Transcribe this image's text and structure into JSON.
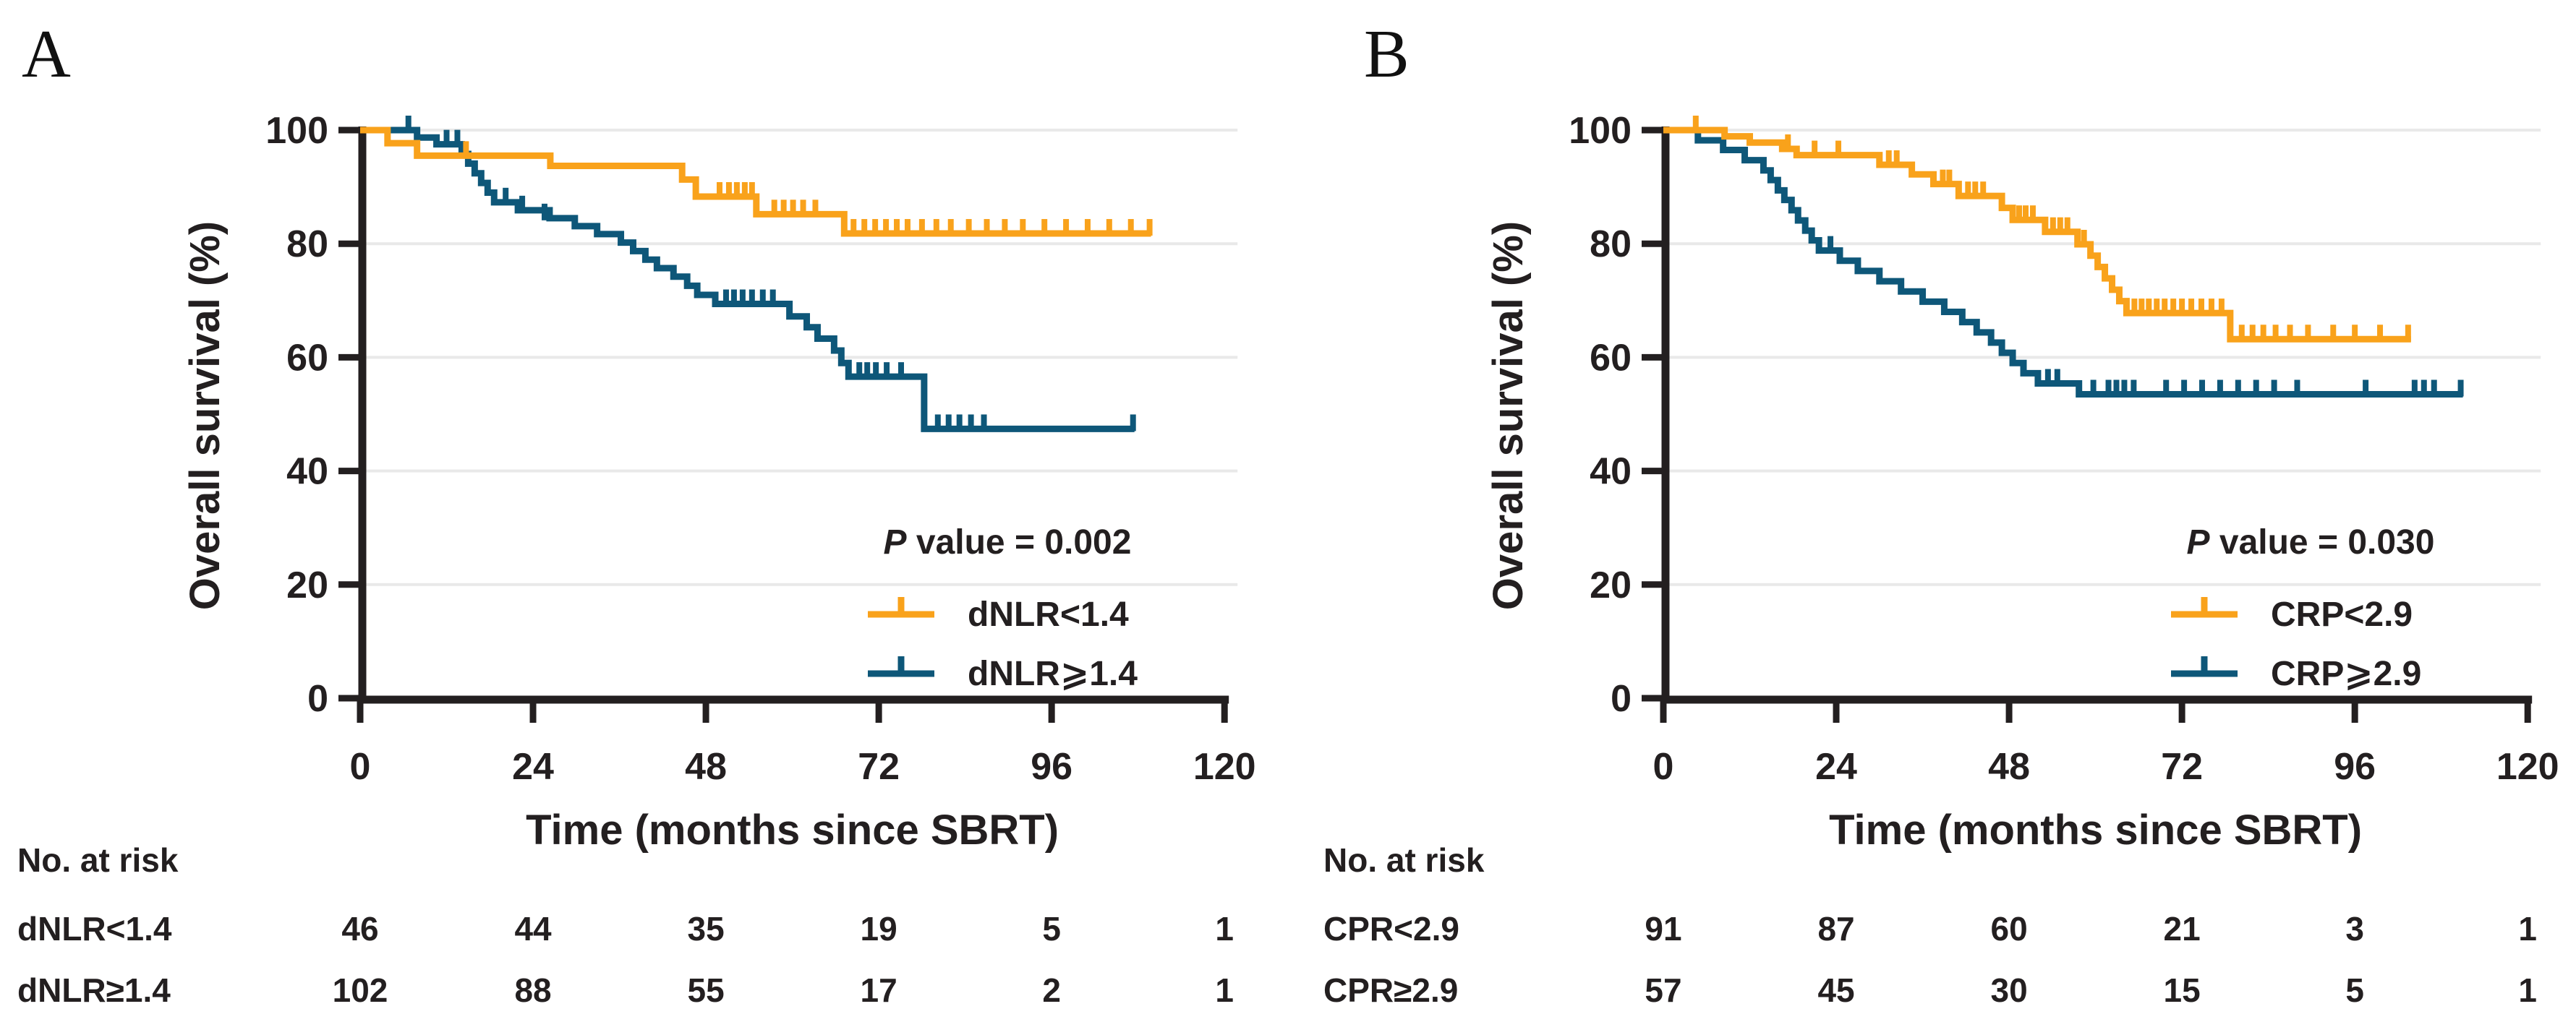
{
  "figure": {
    "background": "#ffffff",
    "text_color": "#231f20",
    "grid_color": "#e9e9e9",
    "panels": [
      {
        "panel_label": "A",
        "p_value_prefix": "P",
        "p_value_rest": " value = 0.002",
        "chart_index": 0
      },
      {
        "panel_label": "B",
        "p_value_prefix": "P",
        "p_value_rest": " value = 0.030",
        "chart_index": 1
      }
    ]
  },
  "chart_data": [
    {
      "type": "line",
      "subtype": "kaplan_meier_step",
      "panel": "A",
      "title": "",
      "xlabel": "Time (months since SBRT)",
      "ylabel": "Overall survival (%)",
      "xlim": [
        0,
        120
      ],
      "ylim": [
        0,
        100
      ],
      "x_ticks": [
        0,
        24,
        48,
        72,
        96,
        120
      ],
      "y_ticks": [
        0,
        20,
        40,
        60,
        80,
        100
      ],
      "grid": true,
      "legend_position": "inside-lower-right",
      "p_value": "P value = 0.002",
      "series": [
        {
          "name": "dNLR<1.4",
          "color": "#f9a21b",
          "steps": [
            [
              0,
              100
            ],
            [
              3.8,
              97.7
            ],
            [
              7.9,
              95.5
            ],
            [
              26.4,
              93.7
            ],
            [
              44.7,
              91.3
            ],
            [
              46.6,
              88.3
            ],
            [
              55,
              85.2
            ],
            [
              67.2,
              81.8
            ]
          ],
          "end_x": 109.8,
          "censor_marks": [
            [
              14.7,
              95.5
            ],
            [
              49.9,
              88.3
            ],
            [
              51.2,
              88.3
            ],
            [
              52.3,
              88.3
            ],
            [
              53.4,
              88.3
            ],
            [
              54.4,
              88.3
            ],
            [
              57.5,
              85.2
            ],
            [
              58.8,
              85.2
            ],
            [
              60.1,
              85.2
            ],
            [
              61.5,
              85.2
            ],
            [
              63.2,
              85.2
            ],
            [
              68.5,
              81.8
            ],
            [
              70,
              81.8
            ],
            [
              71.5,
              81.8
            ],
            [
              73,
              81.8
            ],
            [
              74.5,
              81.8
            ],
            [
              76,
              81.8
            ],
            [
              78,
              81.8
            ],
            [
              80,
              81.8
            ],
            [
              82,
              81.8
            ],
            [
              84.5,
              81.8
            ],
            [
              87,
              81.8
            ],
            [
              89.5,
              81.8
            ],
            [
              92,
              81.8
            ],
            [
              95,
              81.8
            ],
            [
              98,
              81.8
            ],
            [
              101,
              81.8
            ],
            [
              104,
              81.8
            ],
            [
              107,
              81.8
            ],
            [
              109.6,
              81.8
            ]
          ]
        },
        {
          "name": "dNLR⩾1.4",
          "color": "#0e5779",
          "steps": [
            [
              0,
              100
            ],
            [
              7.9,
              98.7
            ],
            [
              10.6,
              97.5
            ],
            [
              14.1,
              95.8
            ],
            [
              15,
              94.1
            ],
            [
              15.9,
              92.4
            ],
            [
              16.8,
              90.7
            ],
            [
              17.7,
              89
            ],
            [
              18.6,
              87.3
            ],
            [
              21.9,
              85.9
            ],
            [
              26.3,
              84.5
            ],
            [
              29.8,
              83.1
            ],
            [
              32.9,
              81.7
            ],
            [
              36.2,
              80.2
            ],
            [
              37.9,
              78.7
            ],
            [
              39.6,
              77.2
            ],
            [
              41.2,
              75.7
            ],
            [
              43.5,
              74.2
            ],
            [
              45.4,
              72.6
            ],
            [
              46.8,
              71
            ],
            [
              49.3,
              69.4
            ],
            [
              59.6,
              67.2
            ],
            [
              62,
              65.3
            ],
            [
              63.5,
              63.3
            ],
            [
              65.8,
              61.2
            ],
            [
              66.8,
              59
            ],
            [
              67.8,
              56.6
            ],
            [
              78.3,
              47.4
            ]
          ],
          "end_x": 107.5,
          "censor_marks": [
            [
              6.7,
              100
            ],
            [
              12,
              97.5
            ],
            [
              13.5,
              97.5
            ],
            [
              20.2,
              87.3
            ],
            [
              22.5,
              85.9
            ],
            [
              25.6,
              84.5
            ],
            [
              50.8,
              69.4
            ],
            [
              51.9,
              69.4
            ],
            [
              53.1,
              69.4
            ],
            [
              54.4,
              69.4
            ],
            [
              55.9,
              69.4
            ],
            [
              57.3,
              69.4
            ],
            [
              69.3,
              56.6
            ],
            [
              70.4,
              56.6
            ],
            [
              71.6,
              56.6
            ],
            [
              73.1,
              56.6
            ],
            [
              75.1,
              56.6
            ],
            [
              80.2,
              47.4
            ],
            [
              81.7,
              47.4
            ],
            [
              83.2,
              47.4
            ],
            [
              84.8,
              47.4
            ],
            [
              86.6,
              47.4
            ],
            [
              107.3,
              47.4
            ]
          ]
        }
      ],
      "risk_table": {
        "header": "No. at risk",
        "time_points": [
          0,
          24,
          48,
          72,
          96,
          120
        ],
        "rows": [
          {
            "label": "dNLR<1.4",
            "values": [
              "46",
              "44",
              "35",
              "19",
              "5",
              "1"
            ]
          },
          {
            "label": "dNLR≥1.4",
            "values": [
              "102",
              "88",
              "55",
              "17",
              "2",
              "1"
            ]
          }
        ]
      }
    },
    {
      "type": "line",
      "subtype": "kaplan_meier_step",
      "panel": "B",
      "title": "",
      "xlabel": "Time (months since SBRT)",
      "ylabel": "Overall survival (%)",
      "xlim": [
        0,
        120
      ],
      "ylim": [
        0,
        100
      ],
      "x_ticks": [
        0,
        24,
        48,
        72,
        96,
        120
      ],
      "y_ticks": [
        0,
        20,
        40,
        60,
        80,
        100
      ],
      "grid": true,
      "legend_position": "inside-lower-right",
      "p_value": "P value = 0.030",
      "series": [
        {
          "name": "CRP<2.9",
          "color": "#f9a21b",
          "steps": [
            [
              0,
              100
            ],
            [
              8.5,
              98.9
            ],
            [
              12,
              97.8
            ],
            [
              16.5,
              96.7
            ],
            [
              18.5,
              95.6
            ],
            [
              30,
              93.9
            ],
            [
              34.5,
              92.2
            ],
            [
              37.5,
              90.5
            ],
            [
              41,
              88.4
            ],
            [
              47,
              86.3
            ],
            [
              48.5,
              84.2
            ],
            [
              53,
              82.1
            ],
            [
              57.5,
              79.9
            ],
            [
              59.3,
              77.9
            ],
            [
              60.3,
              75.9
            ],
            [
              61.3,
              73.9
            ],
            [
              62.3,
              71.9
            ],
            [
              63.3,
              69.9
            ],
            [
              64.3,
              67.8
            ],
            [
              78.7,
              63.2
            ]
          ],
          "end_x": 103.8,
          "censor_marks": [
            [
              4.5,
              100
            ],
            [
              17.3,
              96.7
            ],
            [
              21,
              95.6
            ],
            [
              24.3,
              95.6
            ],
            [
              31.3,
              93.9
            ],
            [
              32.4,
              93.9
            ],
            [
              38.8,
              90.5
            ],
            [
              39.7,
              90.5
            ],
            [
              42.3,
              88.4
            ],
            [
              43.3,
              88.4
            ],
            [
              44.4,
              88.4
            ],
            [
              49.4,
              84.2
            ],
            [
              50.3,
              84.2
            ],
            [
              51.3,
              84.2
            ],
            [
              54.1,
              82.1
            ],
            [
              55.1,
              82.1
            ],
            [
              56.1,
              82.1
            ],
            [
              58.4,
              79.9
            ],
            [
              65.4,
              67.8
            ],
            [
              66.4,
              67.8
            ],
            [
              67.4,
              67.8
            ],
            [
              68.5,
              67.8
            ],
            [
              69.6,
              67.8
            ],
            [
              70.8,
              67.8
            ],
            [
              72,
              67.8
            ],
            [
              73.3,
              67.8
            ],
            [
              74.7,
              67.8
            ],
            [
              76.1,
              67.8
            ],
            [
              77.5,
              67.8
            ],
            [
              80.3,
              63.2
            ],
            [
              81.8,
              63.2
            ],
            [
              83.3,
              63.2
            ],
            [
              85,
              63.2
            ],
            [
              87,
              63.2
            ],
            [
              89.5,
              63.2
            ],
            [
              93,
              63.2
            ],
            [
              96,
              63.2
            ],
            [
              99.5,
              63.2
            ],
            [
              103.4,
              63.2
            ]
          ]
        },
        {
          "name": "CRP⩾2.9",
          "color": "#0e5779",
          "steps": [
            [
              0,
              100
            ],
            [
              4.8,
              98.2
            ],
            [
              8.3,
              96.5
            ],
            [
              11.3,
              94.7
            ],
            [
              13.9,
              92.9
            ],
            [
              14.9,
              91.2
            ],
            [
              15.9,
              89.4
            ],
            [
              16.8,
              87.7
            ],
            [
              17.8,
              85.9
            ],
            [
              18.7,
              84.1
            ],
            [
              19.7,
              82.3
            ],
            [
              20.6,
              80.6
            ],
            [
              21.6,
              78.8
            ],
            [
              24.5,
              77
            ],
            [
              27,
              75.2
            ],
            [
              30,
              73.4
            ],
            [
              33,
              71.6
            ],
            [
              36,
              69.8
            ],
            [
              39,
              68
            ],
            [
              41.5,
              66.2
            ],
            [
              43.5,
              64.4
            ],
            [
              45.5,
              62.6
            ],
            [
              47,
              60.8
            ],
            [
              48.5,
              59
            ],
            [
              50,
              57.2
            ],
            [
              52,
              55.4
            ],
            [
              57.7,
              53.5
            ]
          ],
          "end_x": 111,
          "censor_marks": [
            [
              23.2,
              78.8
            ],
            [
              53.4,
              55.4
            ],
            [
              54.7,
              55.4
            ],
            [
              59.7,
              53.5
            ],
            [
              61.8,
              53.5
            ],
            [
              62.9,
              53.5
            ],
            [
              64,
              53.5
            ],
            [
              65.3,
              53.5
            ],
            [
              69.8,
              53.5
            ],
            [
              72.3,
              53.5
            ],
            [
              74.8,
              53.5
            ],
            [
              77.3,
              53.5
            ],
            [
              79.8,
              53.5
            ],
            [
              82.3,
              53.5
            ],
            [
              84.8,
              53.5
            ],
            [
              88,
              53.5
            ],
            [
              97.5,
              53.5
            ],
            [
              104.3,
              53.5
            ],
            [
              105.6,
              53.5
            ],
            [
              107,
              53.5
            ],
            [
              110.7,
              53.5
            ]
          ]
        }
      ],
      "risk_table": {
        "header": "No. at risk",
        "time_points": [
          0,
          24,
          48,
          72,
          96,
          120
        ],
        "rows": [
          {
            "label": "CPR<2.9",
            "values": [
              "91",
              "87",
              "60",
              "21",
              "3",
              "1"
            ]
          },
          {
            "label": "CPR≥2.9",
            "values": [
              "57",
              "45",
              "30",
              "15",
              "5",
              "1"
            ]
          }
        ]
      }
    }
  ]
}
